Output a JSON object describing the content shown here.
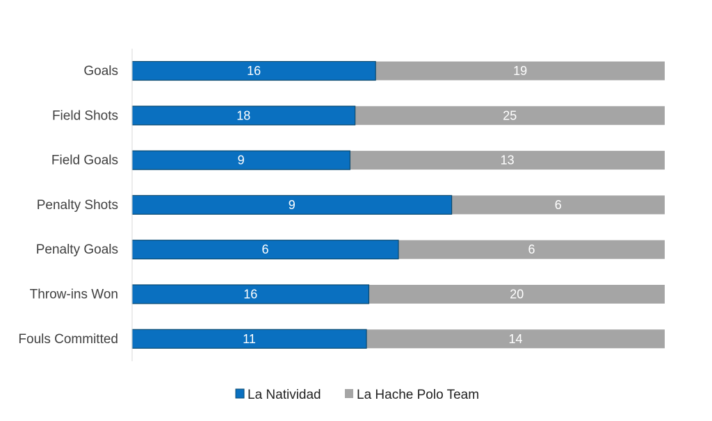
{
  "chart_data": {
    "type": "bar",
    "orientation": "horizontal",
    "stacking": "100%",
    "categories": [
      "Goals",
      "Field Shots",
      "Field Goals",
      "Penalty Shots",
      "Penalty Goals",
      "Throw-ins Won",
      "Fouls Committed"
    ],
    "series": [
      {
        "name": "La Natividad",
        "values": [
          16,
          18,
          9,
          9,
          6,
          16,
          11
        ],
        "color": "#0a70c0"
      },
      {
        "name": "La Hache Polo Team",
        "values": [
          19,
          25,
          13,
          6,
          6,
          20,
          14
        ],
        "color": "#a5a5a5"
      }
    ],
    "title": "",
    "xlabel": "",
    "ylabel": "",
    "grid": false,
    "legend_position": "bottom"
  }
}
